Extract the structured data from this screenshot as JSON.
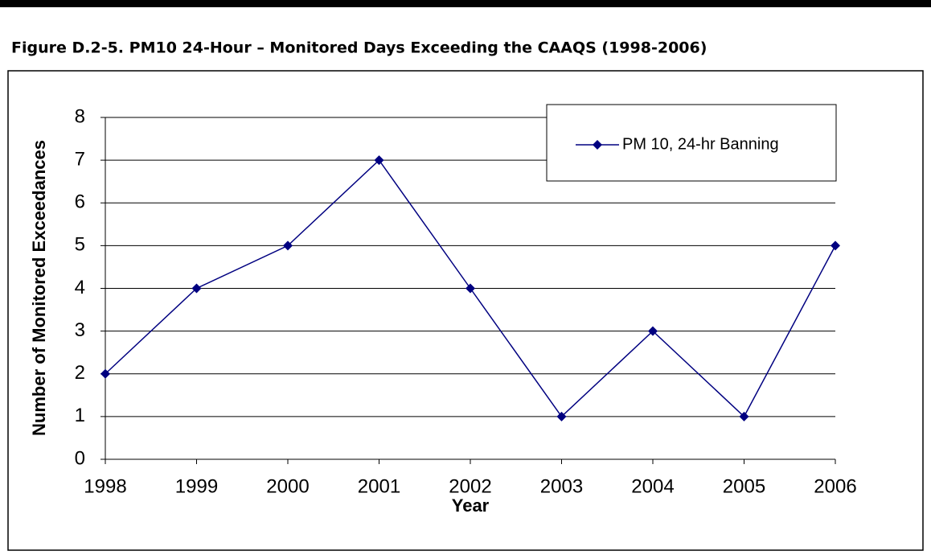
{
  "chart_data": {
    "type": "line",
    "title": "Figure D.2-5. PM10 24-Hour – Monitored Days Exceeding the CAAQS (1998-2006)",
    "x_label": "Year",
    "y_label": "Number of Monitored Exceedances",
    "categories": [
      "1998",
      "1999",
      "2000",
      "2001",
      "2002",
      "2003",
      "2004",
      "2005",
      "2006"
    ],
    "series": [
      {
        "name": "PM 10, 24-hr Banning",
        "color": "#000080",
        "values": [
          2,
          4,
          5,
          7,
          4,
          1,
          3,
          1,
          5
        ]
      }
    ],
    "ylim": [
      0,
      8
    ],
    "yticks": [
      0,
      1,
      2,
      3,
      4,
      5,
      6,
      7,
      8
    ],
    "grid": true,
    "legend": "upper right"
  }
}
